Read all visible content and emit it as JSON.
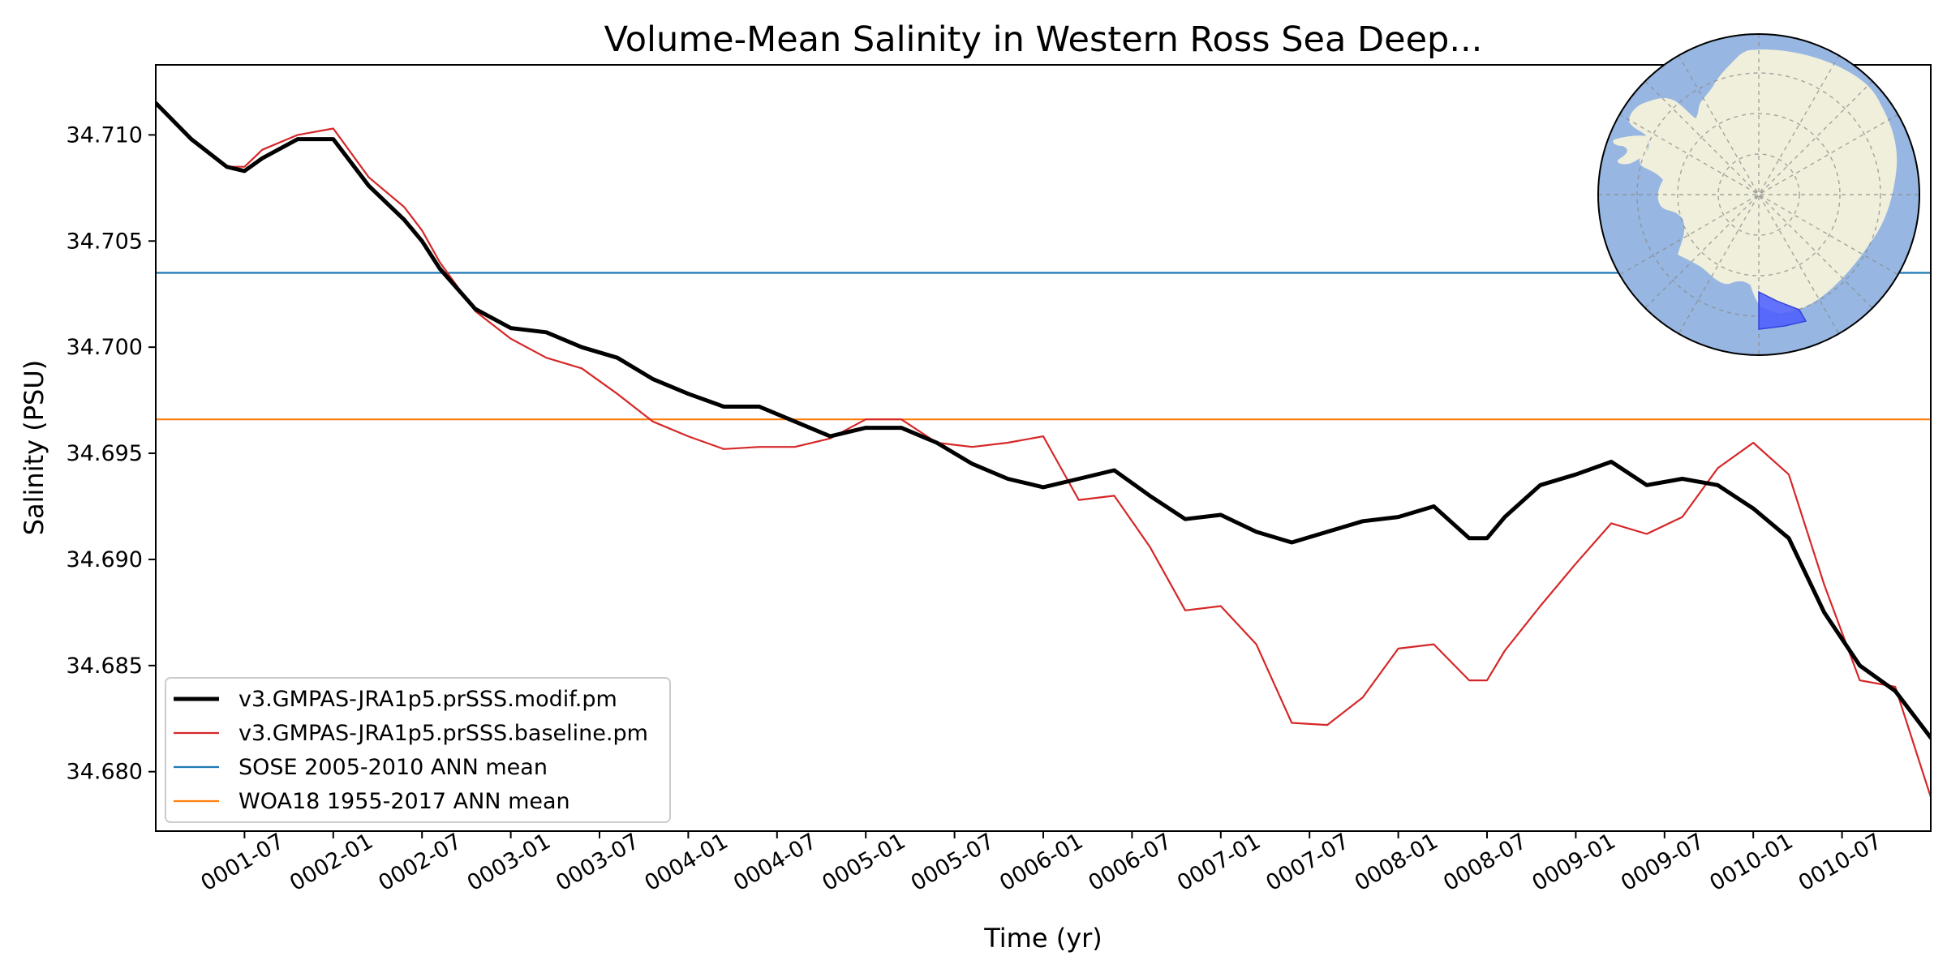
{
  "chart_data": {
    "type": "line",
    "title": "Volume-Mean Salinity in Western Ross Sea Deep...",
    "xlabel": "Time (yr)",
    "ylabel": "Salinity (PSU)",
    "xlim": [
      1.0,
      11.0
    ],
    "ylim": [
      34.6772,
      34.7133
    ],
    "xticks": [
      1.5,
      2.0,
      2.5,
      3.0,
      3.5,
      4.0,
      4.5,
      5.0,
      5.5,
      6.0,
      6.5,
      7.0,
      7.5,
      8.0,
      8.5,
      9.0,
      9.5,
      10.0,
      10.5
    ],
    "xtick_labels": [
      "0001-07",
      "0002-01",
      "0002-07",
      "0003-01",
      "0003-07",
      "0004-01",
      "0004-07",
      "0005-01",
      "0005-07",
      "0006-01",
      "0006-07",
      "0007-01",
      "0007-07",
      "0008-01",
      "0008-07",
      "0009-01",
      "0009-07",
      "0010-01",
      "0010-07"
    ],
    "yticks": [
      34.68,
      34.685,
      34.69,
      34.695,
      34.7,
      34.705,
      34.71
    ],
    "ytick_labels": [
      "34.680",
      "34.685",
      "34.690",
      "34.695",
      "34.700",
      "34.705",
      "34.710"
    ],
    "legend_position": "lower-left",
    "series": [
      {
        "name": "v3.GMPAS-JRA1p5.prSSS.modif.pm",
        "color": "#000000",
        "style": "thick",
        "x": [
          1.0,
          1.2,
          1.4,
          1.5,
          1.6,
          1.8,
          2.0,
          2.2,
          2.4,
          2.5,
          2.6,
          2.8,
          3.0,
          3.2,
          3.4,
          3.6,
          3.8,
          4.0,
          4.2,
          4.4,
          4.6,
          4.8,
          5.0,
          5.2,
          5.4,
          5.6,
          5.8,
          6.0,
          6.2,
          6.4,
          6.6,
          6.8,
          7.0,
          7.2,
          7.4,
          7.6,
          7.8,
          8.0,
          8.2,
          8.4,
          8.5,
          8.6,
          8.8,
          9.0,
          9.2,
          9.4,
          9.6,
          9.8,
          10.0,
          10.2,
          10.4,
          10.6,
          10.8,
          11.0
        ],
        "values": [
          34.7115,
          34.7098,
          34.7085,
          34.7083,
          34.7089,
          34.7098,
          34.7098,
          34.7076,
          34.706,
          34.705,
          34.7037,
          34.7018,
          34.7009,
          34.7007,
          34.7,
          34.6995,
          34.6985,
          34.6978,
          34.6972,
          34.6972,
          34.6965,
          34.6958,
          34.6962,
          34.6962,
          34.6955,
          34.6945,
          34.6938,
          34.6934,
          34.6938,
          34.6942,
          34.693,
          34.6919,
          34.6921,
          34.6913,
          34.6908,
          34.6913,
          34.6918,
          34.692,
          34.6925,
          34.691,
          34.691,
          34.692,
          34.6935,
          34.694,
          34.6946,
          34.6935,
          34.6938,
          34.6935,
          34.6924,
          34.691,
          34.6875,
          34.685,
          34.6838,
          34.6816
        ]
      },
      {
        "name": "v3.GMPAS-JRA1p5.prSSS.baseline.pm",
        "color": "#d62728",
        "style": "thin",
        "x": [
          1.0,
          1.2,
          1.4,
          1.5,
          1.6,
          1.8,
          2.0,
          2.2,
          2.4,
          2.5,
          2.6,
          2.8,
          3.0,
          3.2,
          3.4,
          3.6,
          3.8,
          4.0,
          4.2,
          4.4,
          4.6,
          4.8,
          5.0,
          5.2,
          5.4,
          5.6,
          5.8,
          6.0,
          6.2,
          6.4,
          6.6,
          6.8,
          7.0,
          7.2,
          7.4,
          7.6,
          7.8,
          8.0,
          8.2,
          8.4,
          8.5,
          8.6,
          8.8,
          9.0,
          9.2,
          9.4,
          9.6,
          9.8,
          10.0,
          10.2,
          10.4,
          10.6,
          10.8,
          11.0
        ],
        "values": [
          34.7115,
          34.7098,
          34.7085,
          34.7085,
          34.7093,
          34.71,
          34.7103,
          34.708,
          34.7066,
          34.7055,
          34.704,
          34.7017,
          34.7004,
          34.6995,
          34.699,
          34.6978,
          34.6965,
          34.6958,
          34.6952,
          34.6953,
          34.6953,
          34.6957,
          34.6966,
          34.6966,
          34.6955,
          34.6953,
          34.6955,
          34.6958,
          34.6928,
          34.693,
          34.6906,
          34.6876,
          34.6878,
          34.686,
          34.6823,
          34.6822,
          34.6835,
          34.6858,
          34.686,
          34.6843,
          34.6843,
          34.6857,
          34.6878,
          34.6898,
          34.6917,
          34.6912,
          34.692,
          34.6943,
          34.6955,
          34.694,
          34.6888,
          34.6843,
          34.684,
          34.6788
        ]
      },
      {
        "name": "SOSE 2005-2010 ANN mean",
        "color": "#1f77b4",
        "style": "hline",
        "x": [
          1.0,
          11.0
        ],
        "values": [
          34.7035,
          34.7035
        ]
      },
      {
        "name": "WOA18 1955-2017 ANN mean",
        "color": "#ff7f0e",
        "style": "hline",
        "x": [
          1.0,
          11.0
        ],
        "values": [
          34.6966,
          34.6966
        ]
      }
    ]
  },
  "inset_map": {
    "name": "Antarctica polar stereographic inset with Western Ross Sea region highlighted",
    "ocean_color": "#97b6e1",
    "land_color": "#efefdb",
    "region_color": "#4a5cff"
  }
}
